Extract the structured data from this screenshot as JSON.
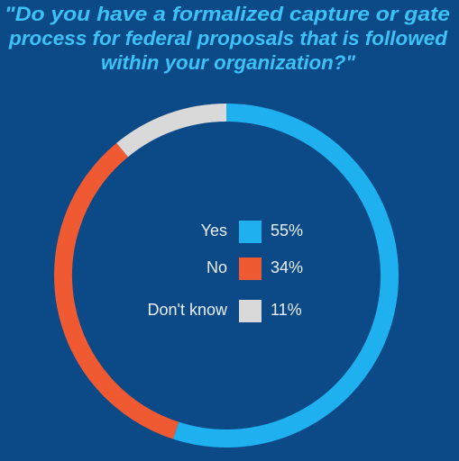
{
  "chart_data": {
    "type": "donut",
    "title": [
      "\"Do you have a formalized capture or gate",
      "process for federal proposals that is followed",
      "within your organization?\""
    ],
    "categories": [
      "Yes",
      "No",
      "Don't know"
    ],
    "values": [
      55,
      34,
      11
    ],
    "value_labels": [
      "55%",
      "34%",
      "11%"
    ],
    "colors": [
      "#1fb0f0",
      "#f05a33",
      "#d9d9d9"
    ]
  }
}
